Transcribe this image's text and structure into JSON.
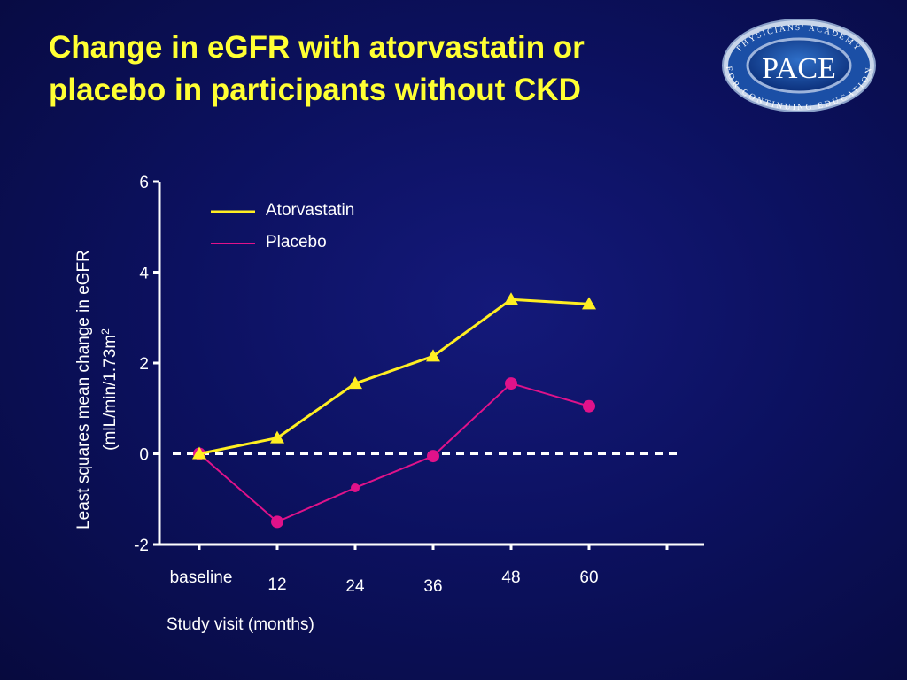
{
  "slide": {
    "title_line1": "Change in eGFR with atorvastatin or",
    "title_line2": "placebo in participants without CKD"
  },
  "logo": {
    "ring_top": "PHYSICIANS' ACADEMY",
    "ring_bottom": "FOR CONTINUING EDUCATION",
    "center": "PACE"
  },
  "chart_data": {
    "type": "line",
    "xlabel": "Study visit (months)",
    "ylabel_line1": "Least squares mean change in eGFR",
    "ylabel_line2": "(mlL/min/1.73m",
    "ylabel_superscript": "2",
    "ylim": [
      -2,
      6
    ],
    "yticks": [
      -2,
      0,
      2,
      4,
      6
    ],
    "categories": [
      "baseline",
      "12",
      "24",
      "36",
      "48",
      "60"
    ],
    "grid": false,
    "reference_line": 0,
    "legend_position": "top-left",
    "series": [
      {
        "name": "Atorvastatin",
        "color": "#ffee22",
        "marker": "triangle",
        "values": [
          0,
          0.35,
          1.55,
          2.15,
          3.4,
          3.3
        ]
      },
      {
        "name": "Placebo",
        "color": "#e0128a",
        "marker": "circle",
        "values": [
          0,
          -1.5,
          -0.75,
          -0.05,
          1.55,
          1.05
        ]
      }
    ]
  }
}
